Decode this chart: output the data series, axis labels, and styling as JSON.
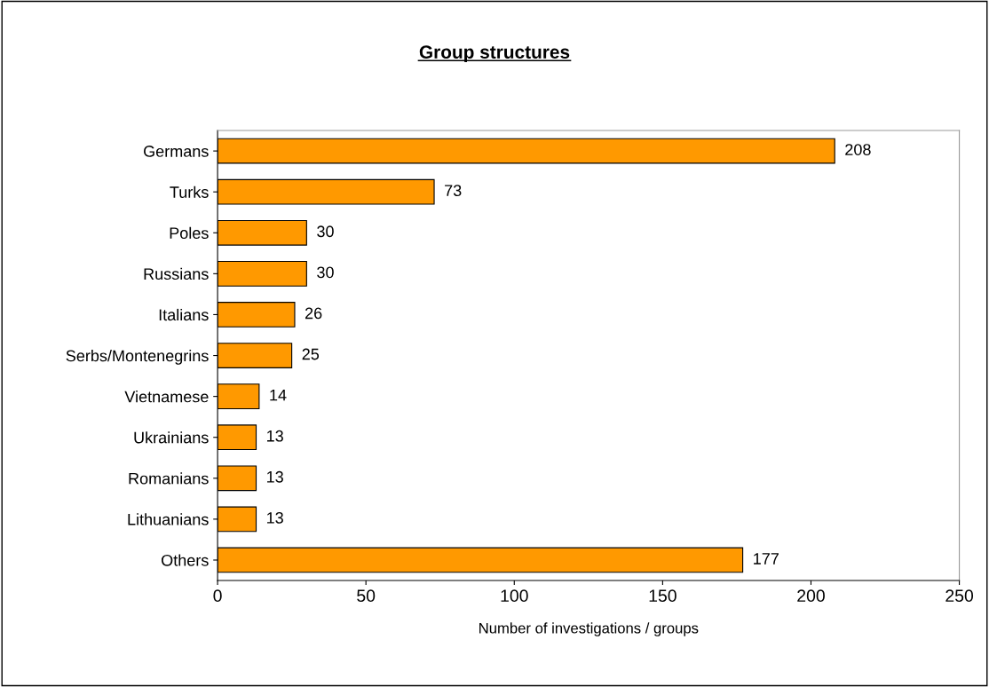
{
  "chart_data": {
    "type": "bar",
    "orientation": "horizontal",
    "title": "Group structures",
    "xlabel": "Number of investigations / groups",
    "categories": [
      "Germans",
      "Turks",
      "Poles",
      "Russians",
      "Italians",
      "Serbs/Montenegrins",
      "Vietnamese",
      "Ukrainians",
      "Romanians",
      "Lithuanians",
      "Others"
    ],
    "values": [
      208,
      73,
      30,
      30,
      26,
      25,
      14,
      13,
      13,
      13,
      177
    ],
    "color": "#ff9900",
    "xlim": [
      0,
      250
    ],
    "xticks": [
      0,
      50,
      100,
      150,
      200,
      250
    ],
    "data_labels": true,
    "grid": false
  }
}
